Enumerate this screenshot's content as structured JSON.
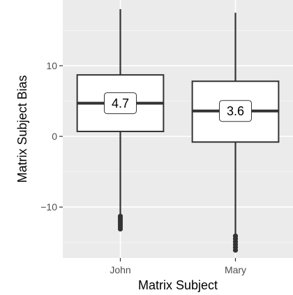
{
  "chart_data": {
    "type": "boxplot",
    "title": "",
    "xlabel": "Matrix Subject",
    "ylabel": "Matrix Subject Bias",
    "ylim": [
      -17.2,
      19.3
    ],
    "yticks": [
      -10,
      0,
      10
    ],
    "ytick_labels": [
      "−10",
      "0",
      "10"
    ],
    "grid": true,
    "legend": "none",
    "categories": [
      "John",
      "Mary"
    ],
    "boxes": [
      {
        "category": "John",
        "min": -11.0,
        "q1": 0.7,
        "median": 4.7,
        "q3": 8.7,
        "max": 18.0,
        "median_label": "4.7",
        "outliers_low": [
          -11.3,
          -11.6,
          -11.9,
          -12.2,
          -12.5,
          -12.8,
          -13.1
        ]
      },
      {
        "category": "Mary",
        "min": -13.8,
        "q1": -0.8,
        "median": 3.6,
        "q3": 7.8,
        "max": 17.5,
        "median_label": "3.6",
        "outliers_low": [
          -14.1,
          -14.5,
          -14.9,
          -15.3,
          -15.7,
          -16.1
        ]
      }
    ],
    "colors": {
      "panel": "#ebebeb",
      "grid_major": "#ffffff",
      "grid_minor": "#f5f5f5",
      "box_fill": "#ffffff",
      "line": "#333333",
      "label_border": "#333333"
    }
  }
}
